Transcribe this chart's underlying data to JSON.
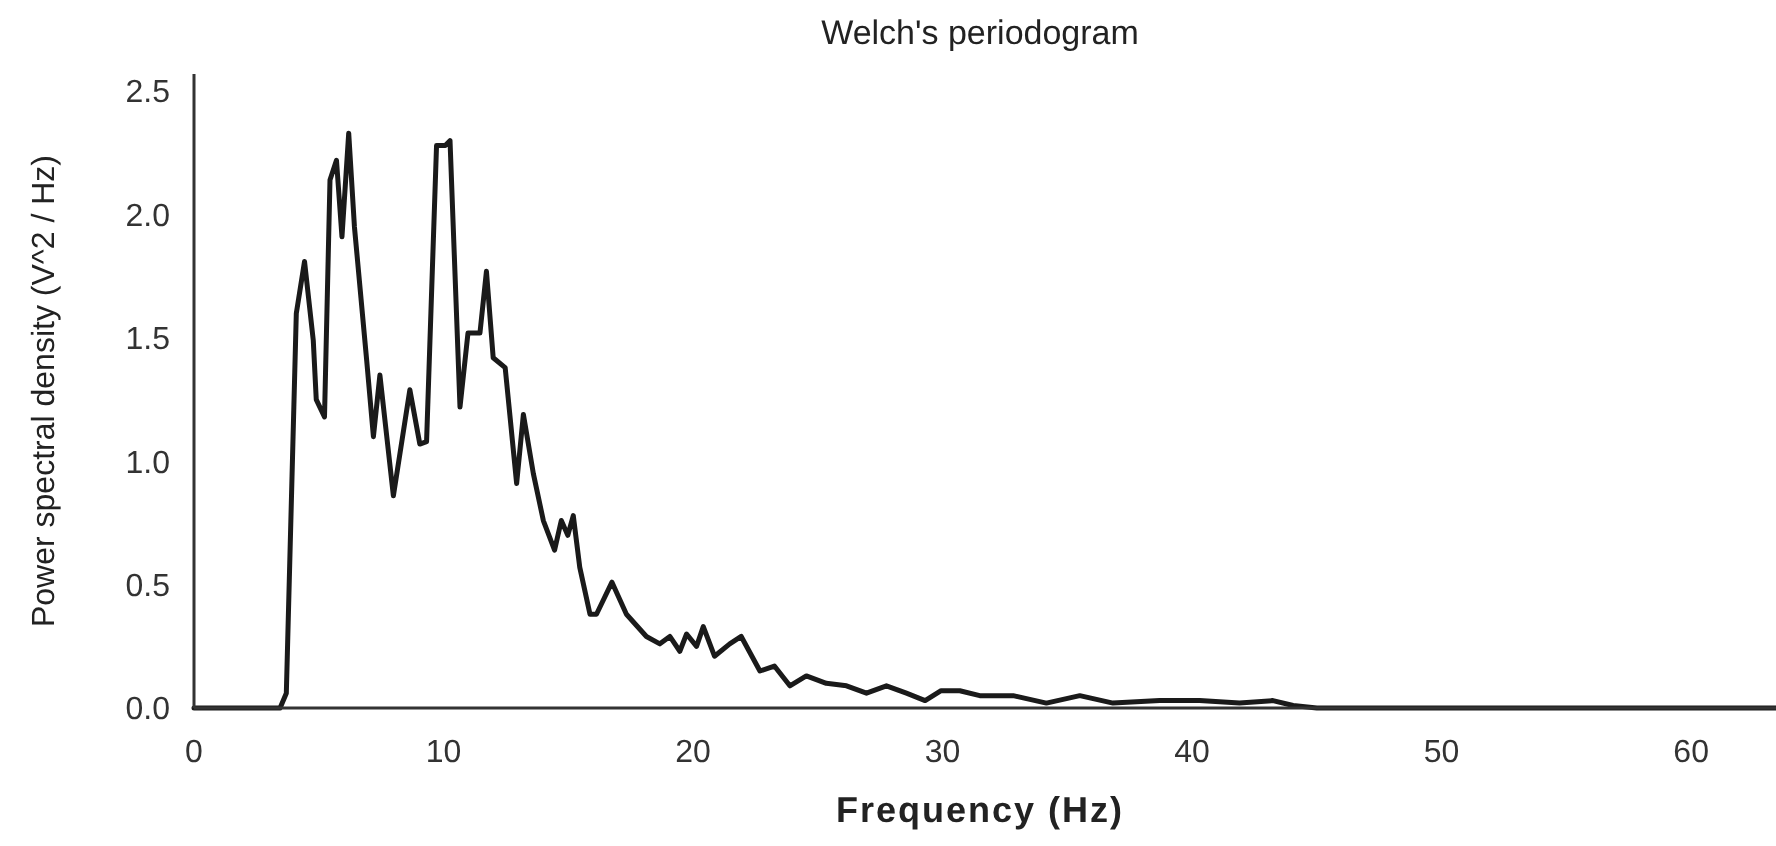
{
  "chart_data": {
    "type": "line",
    "title": "Welch's periodogram",
    "xlabel": "Frequency (Hz)",
    "ylabel": "Power spectral density (V^2 / Hz)",
    "xlim": [
      0,
      63.4
    ],
    "xticks": [
      0,
      10,
      20,
      30,
      40,
      50,
      60
    ],
    "ylim": [
      0,
      2.57
    ],
    "yticks": [
      {
        "value": 0,
        "label": "0.0"
      },
      {
        "value": 0.5,
        "label": "0.5"
      },
      {
        "value": 1,
        "label": "1.0"
      },
      {
        "value": 1.5,
        "label": "1.5"
      },
      {
        "value": 2,
        "label": "2.0"
      },
      {
        "value": 2.5,
        "label": "2.5"
      }
    ],
    "grid": false,
    "marker": "none",
    "line_style": "solid",
    "series": [
      {
        "color": "#1a1a1a",
        "x": [
          0,
          3.45,
          3.7,
          4.1,
          4.43,
          4.78,
          4.9,
          5.23,
          5.45,
          5.71,
          5.93,
          6.2,
          6.43,
          6.92,
          7.19,
          7.45,
          7.99,
          8.65,
          9.05,
          9.32,
          9.72,
          10.07,
          10.26,
          10.66,
          10.98,
          11.46,
          11.72,
          11.99,
          12.47,
          12.93,
          13.2,
          13.6,
          14.0,
          14.45,
          14.72,
          14.98,
          15.2,
          15.46,
          15.87,
          16.13,
          16.75,
          17.33,
          18.13,
          18.67,
          19.07,
          19.47,
          19.74,
          20.14,
          20.41,
          20.86,
          21.47,
          21.93,
          22.68,
          23.26,
          23.88,
          24.54,
          25.34,
          26.15,
          26.95,
          27.75,
          28.55,
          29.3,
          29.94,
          30.69,
          31.49,
          32.83,
          34.16,
          35.5,
          36.83,
          38.7,
          40.3,
          41.9,
          43.24,
          44.05,
          45.0,
          63.4
        ],
        "values": [
          0,
          0,
          0.06,
          1.6,
          1.81,
          1.49,
          1.25,
          1.18,
          2.14,
          2.22,
          1.91,
          2.33,
          1.95,
          1.41,
          1.1,
          1.35,
          0.86,
          1.29,
          1.07,
          1.08,
          2.28,
          2.28,
          2.3,
          1.22,
          1.52,
          1.52,
          1.77,
          1.42,
          1.38,
          0.91,
          1.19,
          0.95,
          0.76,
          0.64,
          0.76,
          0.7,
          0.78,
          0.57,
          0.38,
          0.38,
          0.51,
          0.38,
          0.29,
          0.26,
          0.29,
          0.23,
          0.3,
          0.25,
          0.33,
          0.21,
          0.26,
          0.29,
          0.15,
          0.17,
          0.09,
          0.13,
          0.1,
          0.09,
          0.06,
          0.09,
          0.06,
          0.03,
          0.07,
          0.07,
          0.05,
          0.05,
          0.02,
          0.05,
          0.02,
          0.03,
          0.03,
          0.02,
          0.03,
          0.01,
          0,
          0
        ]
      }
    ]
  }
}
